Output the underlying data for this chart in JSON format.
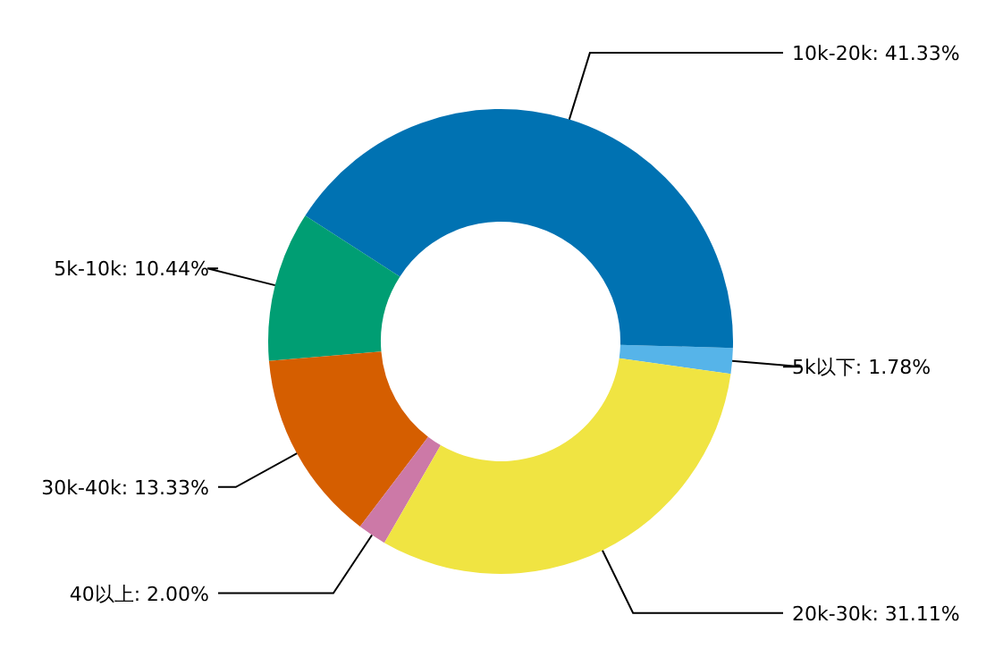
{
  "chart_data": {
    "type": "donut",
    "categories": [
      "5k以下",
      "10k-20k",
      "5k-10k",
      "30k-40k",
      "40以上",
      "20k-30k"
    ],
    "values": [
      1.78,
      41.33,
      10.44,
      13.33,
      2.0,
      31.11
    ],
    "colors": [
      "#56b4e9",
      "#0072b2",
      "#009e73",
      "#d55e00",
      "#cc79a7",
      "#f0e442"
    ],
    "value_labels": [
      ": 1.78%",
      ": 41.33%",
      ": 10.44%",
      ": 13.33%",
      ": 2.00%",
      ": 31.11%"
    ]
  }
}
